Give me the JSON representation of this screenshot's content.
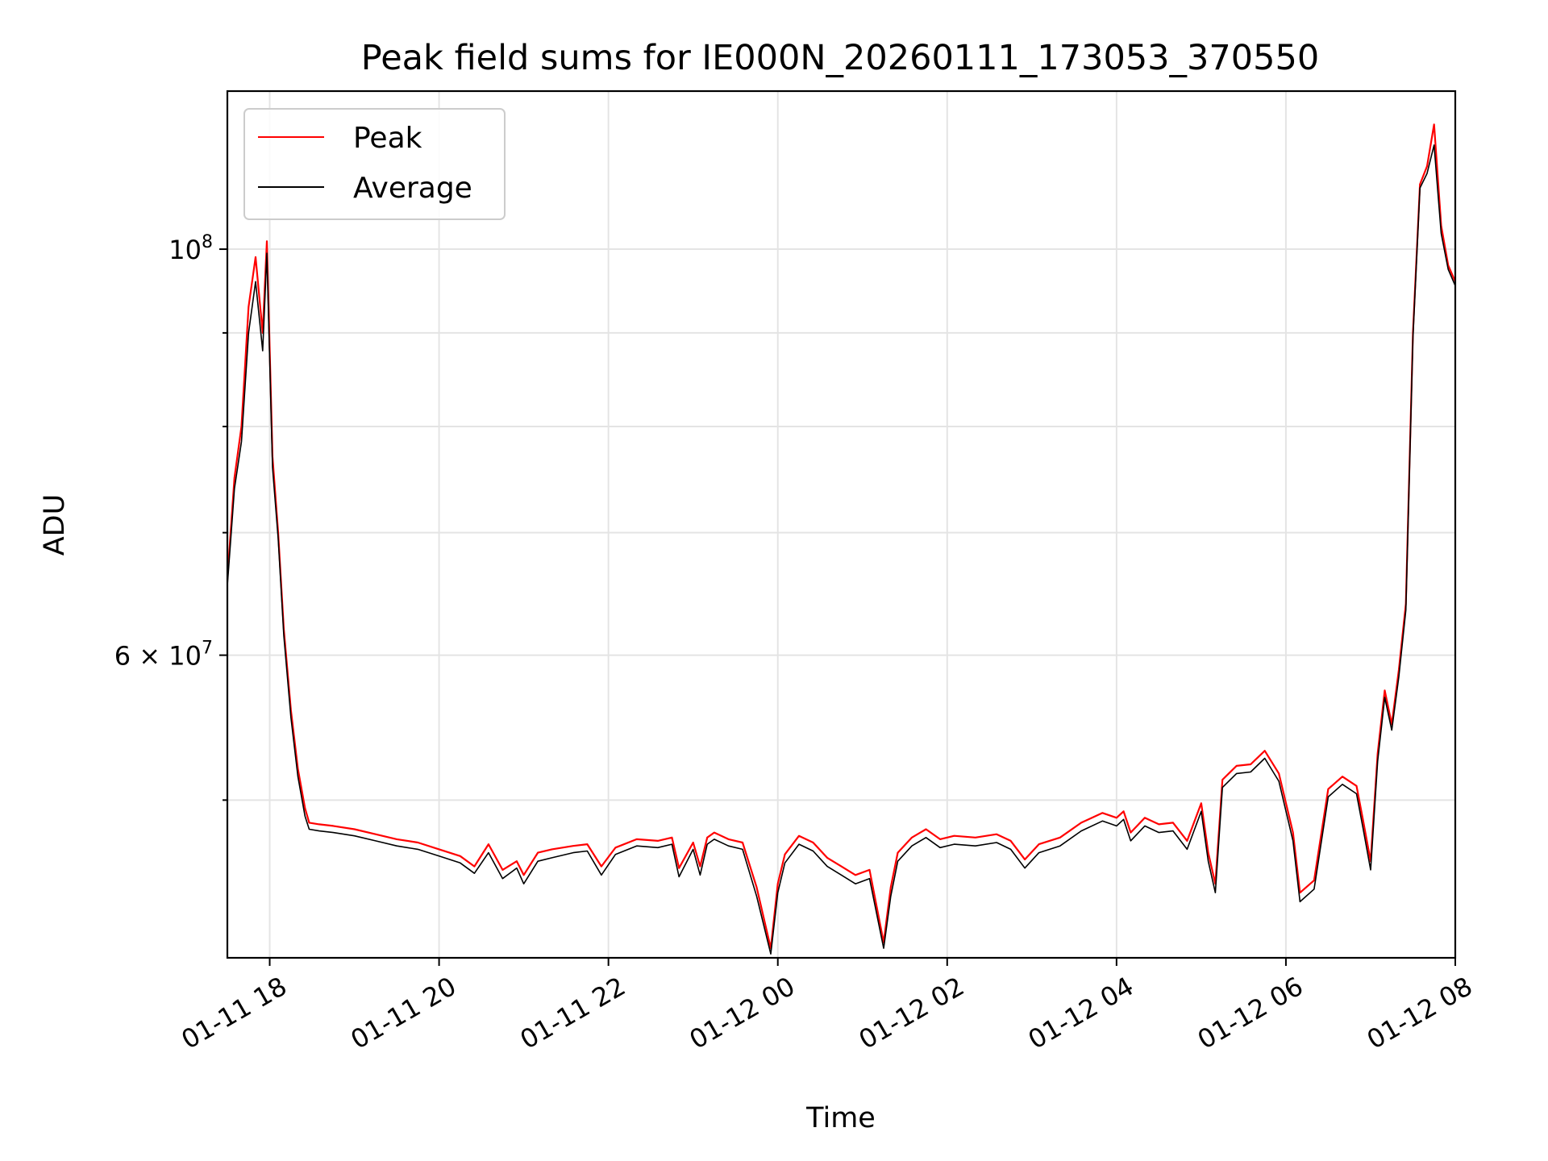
{
  "chart_data": {
    "type": "line",
    "title": "Peak field sums for IE000N_20260111_173053_370550",
    "xlabel": "Time",
    "ylabel": "ADU",
    "x_axis_type": "datetime",
    "xlim": [
      "2026-01-11 17:30",
      "2026-01-12 08:00"
    ],
    "ylim": [
      41000000,
      122000000
    ],
    "y_scale": "log",
    "grid": true,
    "legend_position": "upper-left",
    "x_ticks": [
      {
        "value": "2026-01-11 18:00",
        "label": "01-11 18"
      },
      {
        "value": "2026-01-11 20:00",
        "label": "01-11 20"
      },
      {
        "value": "2026-01-11 22:00",
        "label": "01-11 22"
      },
      {
        "value": "2026-01-12 00:00",
        "label": "01-12 00"
      },
      {
        "value": "2026-01-12 02:00",
        "label": "01-12 02"
      },
      {
        "value": "2026-01-12 04:00",
        "label": "01-12 04"
      },
      {
        "value": "2026-01-12 06:00",
        "label": "01-12 06"
      },
      {
        "value": "2026-01-12 08:00",
        "label": "01-12 08"
      }
    ],
    "y_major_ticks": [
      {
        "value": 100000000,
        "base": "10",
        "exp": "8"
      },
      {
        "value": 60000000,
        "mantissa": "6 × ",
        "base": "10",
        "exp": "7"
      }
    ],
    "y_minor_ticks": [
      50000000,
      70000000,
      80000000,
      90000000
    ],
    "series": [
      {
        "name": "Peak",
        "color": "#ff0000",
        "x": [
          "2026-01-11 17:30",
          "2026-01-11 17:35",
          "2026-01-11 17:40",
          "2026-01-11 17:45",
          "2026-01-11 17:50",
          "2026-01-11 17:55",
          "2026-01-11 17:58",
          "2026-01-11 18:02",
          "2026-01-11 18:06",
          "2026-01-11 18:10",
          "2026-01-11 18:15",
          "2026-01-11 18:20",
          "2026-01-11 18:25",
          "2026-01-11 18:28",
          "2026-01-11 18:35",
          "2026-01-11 18:45",
          "2026-01-11 19:00",
          "2026-01-11 19:15",
          "2026-01-11 19:30",
          "2026-01-11 19:45",
          "2026-01-11 20:00",
          "2026-01-11 20:15",
          "2026-01-11 20:25",
          "2026-01-11 20:35",
          "2026-01-11 20:45",
          "2026-01-11 20:55",
          "2026-01-11 21:00",
          "2026-01-11 21:10",
          "2026-01-11 21:20",
          "2026-01-11 21:35",
          "2026-01-11 21:45",
          "2026-01-11 21:55",
          "2026-01-11 22:05",
          "2026-01-11 22:20",
          "2026-01-11 22:35",
          "2026-01-11 22:45",
          "2026-01-11 22:50",
          "2026-01-11 23:00",
          "2026-01-11 23:05",
          "2026-01-11 23:10",
          "2026-01-11 23:15",
          "2026-01-11 23:25",
          "2026-01-11 23:35",
          "2026-01-11 23:45",
          "2026-01-11 23:55",
          "2026-01-12 00:00",
          "2026-01-12 00:05",
          "2026-01-12 00:15",
          "2026-01-12 00:25",
          "2026-01-12 00:35",
          "2026-01-12 00:45",
          "2026-01-12 00:55",
          "2026-01-12 01:05",
          "2026-01-12 01:15",
          "2026-01-12 01:20",
          "2026-01-12 01:25",
          "2026-01-12 01:35",
          "2026-01-12 01:45",
          "2026-01-12 01:55",
          "2026-01-12 02:05",
          "2026-01-12 02:20",
          "2026-01-12 02:35",
          "2026-01-12 02:45",
          "2026-01-12 02:55",
          "2026-01-12 03:05",
          "2026-01-12 03:20",
          "2026-01-12 03:35",
          "2026-01-12 03:50",
          "2026-01-12 04:00",
          "2026-01-12 04:05",
          "2026-01-12 04:10",
          "2026-01-12 04:20",
          "2026-01-12 04:30",
          "2026-01-12 04:40",
          "2026-01-12 04:50",
          "2026-01-12 05:00",
          "2026-01-12 05:05",
          "2026-01-12 05:10",
          "2026-01-12 05:15",
          "2026-01-12 05:25",
          "2026-01-12 05:35",
          "2026-01-12 05:45",
          "2026-01-12 05:55",
          "2026-01-12 06:05",
          "2026-01-12 06:10",
          "2026-01-12 06:20",
          "2026-01-12 06:30",
          "2026-01-12 06:40",
          "2026-01-12 06:50",
          "2026-01-12 06:55",
          "2026-01-12 07:00",
          "2026-01-12 07:05",
          "2026-01-12 07:10",
          "2026-01-12 07:15",
          "2026-01-12 07:20",
          "2026-01-12 07:25",
          "2026-01-12 07:30",
          "2026-01-12 07:35",
          "2026-01-12 07:40",
          "2026-01-12 07:45",
          "2026-01-12 07:50",
          "2026-01-12 07:55",
          "2026-01-12 08:00"
        ],
        "values": [
          66000000,
          75000000,
          80000000,
          93000000,
          99000000,
          90000000,
          101000000,
          77000000,
          70000000,
          62000000,
          56000000,
          52000000,
          49500000,
          48600000,
          48500000,
          48400000,
          48200000,
          47900000,
          47600000,
          47400000,
          47000000,
          46600000,
          46000000,
          47300000,
          45800000,
          46300000,
          45500000,
          46800000,
          47000000,
          47200000,
          47300000,
          46000000,
          47100000,
          47600000,
          47500000,
          47700000,
          45900000,
          47400000,
          46000000,
          47700000,
          48000000,
          47600000,
          47400000,
          44800000,
          41500000,
          45000000,
          46700000,
          47800000,
          47400000,
          46500000,
          46000000,
          45500000,
          45800000,
          41800000,
          44800000,
          46800000,
          47700000,
          48200000,
          47600000,
          47800000,
          47700000,
          47900000,
          47500000,
          46400000,
          47300000,
          47700000,
          48600000,
          49200000,
          48900000,
          49300000,
          48000000,
          48900000,
          48500000,
          48600000,
          47500000,
          49800000,
          46800000,
          45000000,
          51300000,
          52200000,
          52300000,
          53200000,
          51700000,
          48000000,
          44500000,
          45200000,
          50700000,
          51500000,
          50900000,
          48600000,
          46300000,
          53000000,
          57400000,
          55000000,
          58900000,
          64000000,
          90000000,
          108500000,
          111000000,
          117000000,
          103000000,
          98000000,
          96000000
        ]
      },
      {
        "name": "Average",
        "color": "#000000",
        "x": [
          "2026-01-11 17:30",
          "2026-01-11 17:35",
          "2026-01-11 17:40",
          "2026-01-11 17:45",
          "2026-01-11 17:50",
          "2026-01-11 17:55",
          "2026-01-11 17:58",
          "2026-01-11 18:02",
          "2026-01-11 18:06",
          "2026-01-11 18:10",
          "2026-01-11 18:15",
          "2026-01-11 18:20",
          "2026-01-11 18:25",
          "2026-01-11 18:28",
          "2026-01-11 18:35",
          "2026-01-11 18:45",
          "2026-01-11 19:00",
          "2026-01-11 19:15",
          "2026-01-11 19:30",
          "2026-01-11 19:45",
          "2026-01-11 20:00",
          "2026-01-11 20:15",
          "2026-01-11 20:25",
          "2026-01-11 20:35",
          "2026-01-11 20:45",
          "2026-01-11 20:55",
          "2026-01-11 21:00",
          "2026-01-11 21:10",
          "2026-01-11 21:20",
          "2026-01-11 21:35",
          "2026-01-11 21:45",
          "2026-01-11 21:55",
          "2026-01-11 22:05",
          "2026-01-11 22:20",
          "2026-01-11 22:35",
          "2026-01-11 22:45",
          "2026-01-11 22:50",
          "2026-01-11 23:00",
          "2026-01-11 23:05",
          "2026-01-11 23:10",
          "2026-01-11 23:15",
          "2026-01-11 23:25",
          "2026-01-11 23:35",
          "2026-01-11 23:45",
          "2026-01-11 23:55",
          "2026-01-12 00:00",
          "2026-01-12 00:05",
          "2026-01-12 00:15",
          "2026-01-12 00:25",
          "2026-01-12 00:35",
          "2026-01-12 00:45",
          "2026-01-12 00:55",
          "2026-01-12 01:05",
          "2026-01-12 01:15",
          "2026-01-12 01:20",
          "2026-01-12 01:25",
          "2026-01-12 01:35",
          "2026-01-12 01:45",
          "2026-01-12 01:55",
          "2026-01-12 02:05",
          "2026-01-12 02:20",
          "2026-01-12 02:35",
          "2026-01-12 02:45",
          "2026-01-12 02:55",
          "2026-01-12 03:05",
          "2026-01-12 03:20",
          "2026-01-12 03:35",
          "2026-01-12 03:50",
          "2026-01-12 04:00",
          "2026-01-12 04:05",
          "2026-01-12 04:10",
          "2026-01-12 04:20",
          "2026-01-12 04:30",
          "2026-01-12 04:40",
          "2026-01-12 04:50",
          "2026-01-12 05:00",
          "2026-01-12 05:05",
          "2026-01-12 05:10",
          "2026-01-12 05:15",
          "2026-01-12 05:25",
          "2026-01-12 05:35",
          "2026-01-12 05:45",
          "2026-01-12 05:55",
          "2026-01-12 06:05",
          "2026-01-12 06:10",
          "2026-01-12 06:20",
          "2026-01-12 06:30",
          "2026-01-12 06:40",
          "2026-01-12 06:50",
          "2026-01-12 06:55",
          "2026-01-12 07:00",
          "2026-01-12 07:05",
          "2026-01-12 07:10",
          "2026-01-12 07:15",
          "2026-01-12 07:20",
          "2026-01-12 07:25",
          "2026-01-12 07:30",
          "2026-01-12 07:35",
          "2026-01-12 07:40",
          "2026-01-12 07:45",
          "2026-01-12 07:50",
          "2026-01-12 07:55",
          "2026-01-12 08:00"
        ],
        "values": [
          65500000,
          74000000,
          78500000,
          90000000,
          96000000,
          88000000,
          99500000,
          76000000,
          69500000,
          61500000,
          55500000,
          51500000,
          49000000,
          48200000,
          48100000,
          48000000,
          47800000,
          47500000,
          47200000,
          47000000,
          46600000,
          46200000,
          45600000,
          46800000,
          45300000,
          45900000,
          45000000,
          46300000,
          46500000,
          46800000,
          46900000,
          45500000,
          46700000,
          47200000,
          47100000,
          47300000,
          45400000,
          47000000,
          45500000,
          47300000,
          47600000,
          47200000,
          47000000,
          44300000,
          41200000,
          44500000,
          46200000,
          47300000,
          46900000,
          46000000,
          45500000,
          45000000,
          45300000,
          41500000,
          44300000,
          46300000,
          47200000,
          47700000,
          47100000,
          47300000,
          47200000,
          47400000,
          47000000,
          45900000,
          46800000,
          47200000,
          48100000,
          48700000,
          48400000,
          48800000,
          47500000,
          48400000,
          48000000,
          48100000,
          47000000,
          49300000,
          46300000,
          44500000,
          50800000,
          51700000,
          51800000,
          52700000,
          51200000,
          47500000,
          44000000,
          44700000,
          50200000,
          51000000,
          50400000,
          48100000,
          45800000,
          52500000,
          56900000,
          54600000,
          58400000,
          63500000,
          89500000,
          108000000,
          110000000,
          114000000,
          102000000,
          97500000,
          95500000
        ]
      }
    ]
  }
}
